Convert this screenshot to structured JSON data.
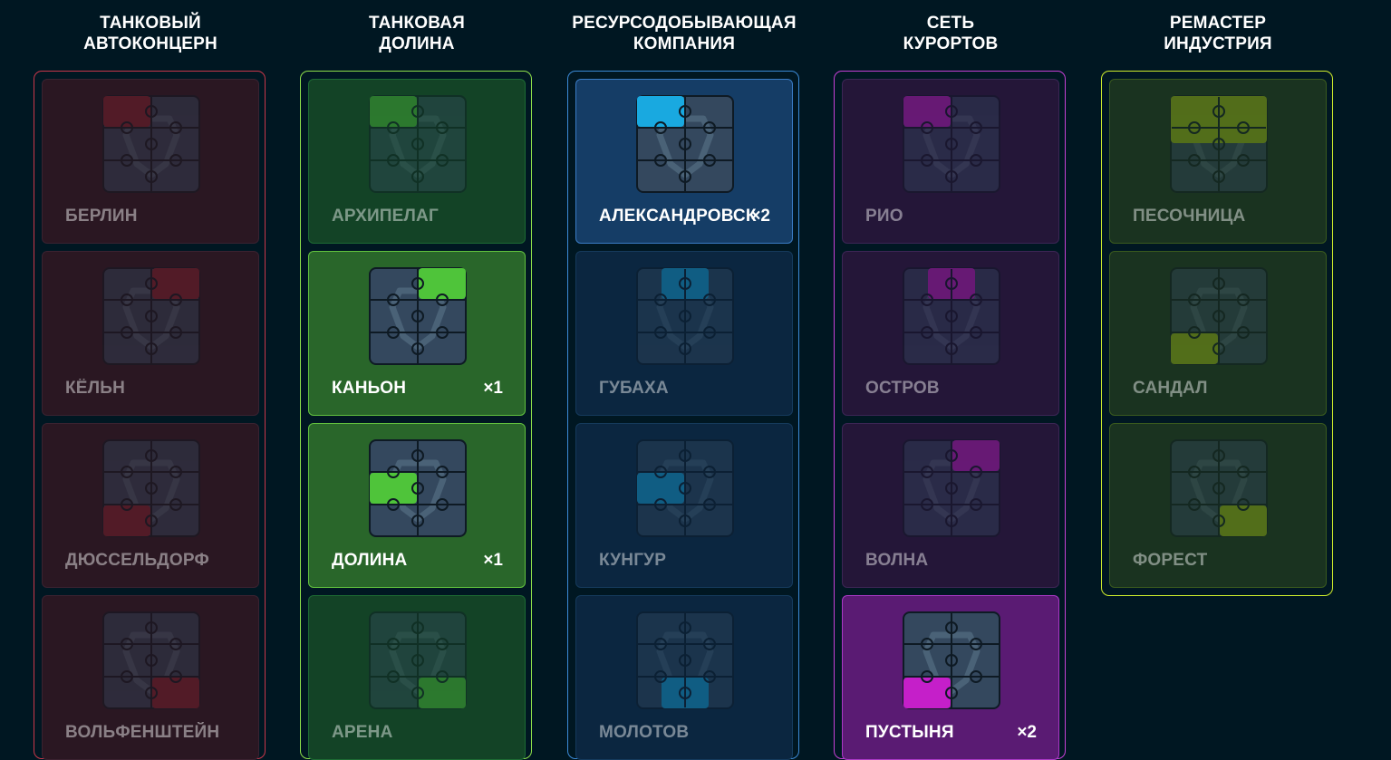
{
  "columns": [
    {
      "title_line1": "ТАНКОВЫЙ",
      "title_line2": "АВТОКОНЦЕРН",
      "accent": "#c8374a",
      "piece_color": "#8a2230",
      "cards": [
        {
          "label": "БЕРЛИН",
          "count": "",
          "state": "dim",
          "piece": "tl"
        },
        {
          "label": "КЁЛЬН",
          "count": "",
          "state": "dim",
          "piece": "tr"
        },
        {
          "label": "ДЮССЕЛЬДОРФ",
          "count": "",
          "state": "dim",
          "piece": "bl"
        },
        {
          "label": "ВОЛЬФЕНШТЕЙН",
          "count": "",
          "state": "dim",
          "piece": "br"
        }
      ]
    },
    {
      "title_line1": "ТАНКОВАЯ",
      "title_line2": "ДОЛИНА",
      "accent": "#8ee04b",
      "piece_color": "#4fc43a",
      "cards": [
        {
          "label": "АРХИПЕЛАГ",
          "count": "",
          "state": "dim",
          "piece": "tl"
        },
        {
          "label": "КАНЬОН",
          "count": "×1",
          "state": "active",
          "piece": "tr"
        },
        {
          "label": "ДОЛИНА",
          "count": "×1",
          "state": "active",
          "piece": "ml"
        },
        {
          "label": "АРЕНА",
          "count": "",
          "state": "dim",
          "piece": "br"
        }
      ]
    },
    {
      "title_line1": "РЕСУРСОДОБЫВАЮЩАЯ",
      "title_line2": "КОМПАНИЯ",
      "accent": "#3b8ad6",
      "piece_color": "#19a9e0",
      "cards": [
        {
          "label": "АЛЕКСАНДРОВСК",
          "count": "×2",
          "state": "active",
          "piece": "tl"
        },
        {
          "label": "ГУБАХА",
          "count": "",
          "state": "dim",
          "piece": "tc"
        },
        {
          "label": "КУНГУР",
          "count": "",
          "state": "dim",
          "piece": "ml"
        },
        {
          "label": "МОЛОТОВ",
          "count": "",
          "state": "dim",
          "piece": "bc"
        }
      ]
    },
    {
      "title_line1": "СЕТЬ",
      "title_line2": "КУРОРТОВ",
      "accent": "#c640d6",
      "piece_color": "#c51fc9",
      "cards": [
        {
          "label": "РИО",
          "count": "",
          "state": "dim",
          "piece": "tl"
        },
        {
          "label": "ОСТРОВ",
          "count": "",
          "state": "dim",
          "piece": "tc"
        },
        {
          "label": "ВОЛНА",
          "count": "",
          "state": "dim",
          "piece": "tr"
        },
        {
          "label": "ПУСТЫНЯ",
          "count": "×2",
          "state": "active",
          "piece": "bl"
        }
      ]
    },
    {
      "title_line1": "РЕМАСТЕР",
      "title_line2": "ИНДУСТРИЯ",
      "accent": "#d0ee2c",
      "piece_color": "#9fbf14",
      "cards": [
        {
          "label": "ПЕСОЧНИЦА",
          "count": "",
          "state": "dim",
          "piece": "top"
        },
        {
          "label": "САНДАЛ",
          "count": "",
          "state": "dim",
          "piece": "bl"
        },
        {
          "label": "ФОРЕСТ",
          "count": "",
          "state": "dim",
          "piece": "br"
        }
      ]
    }
  ]
}
